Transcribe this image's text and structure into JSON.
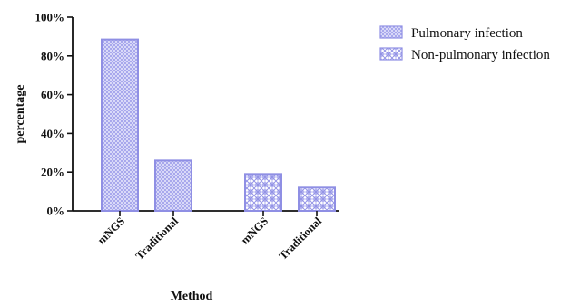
{
  "chart_data": {
    "type": "bar",
    "title": "",
    "xlabel": "Method",
    "ylabel": "percentage",
    "ylim": [
      0,
      100
    ],
    "ytick_labels": [
      "0%",
      "20%",
      "40%",
      "60%",
      "80%",
      "100%"
    ],
    "grid": false,
    "legend_position": "top-right",
    "series": [
      {
        "name": "Pulmonary infection",
        "pattern": "fine-crosshatch",
        "color": "#a8a8ee",
        "categories": [
          "mNGS",
          "Traditional"
        ],
        "values": [
          88.5,
          26
        ]
      },
      {
        "name": "Non-pulmonary infection",
        "pattern": "checkered",
        "color": "#a8a8ee",
        "categories": [
          "mNGS",
          "Traditional"
        ],
        "values": [
          19,
          12
        ]
      }
    ]
  }
}
